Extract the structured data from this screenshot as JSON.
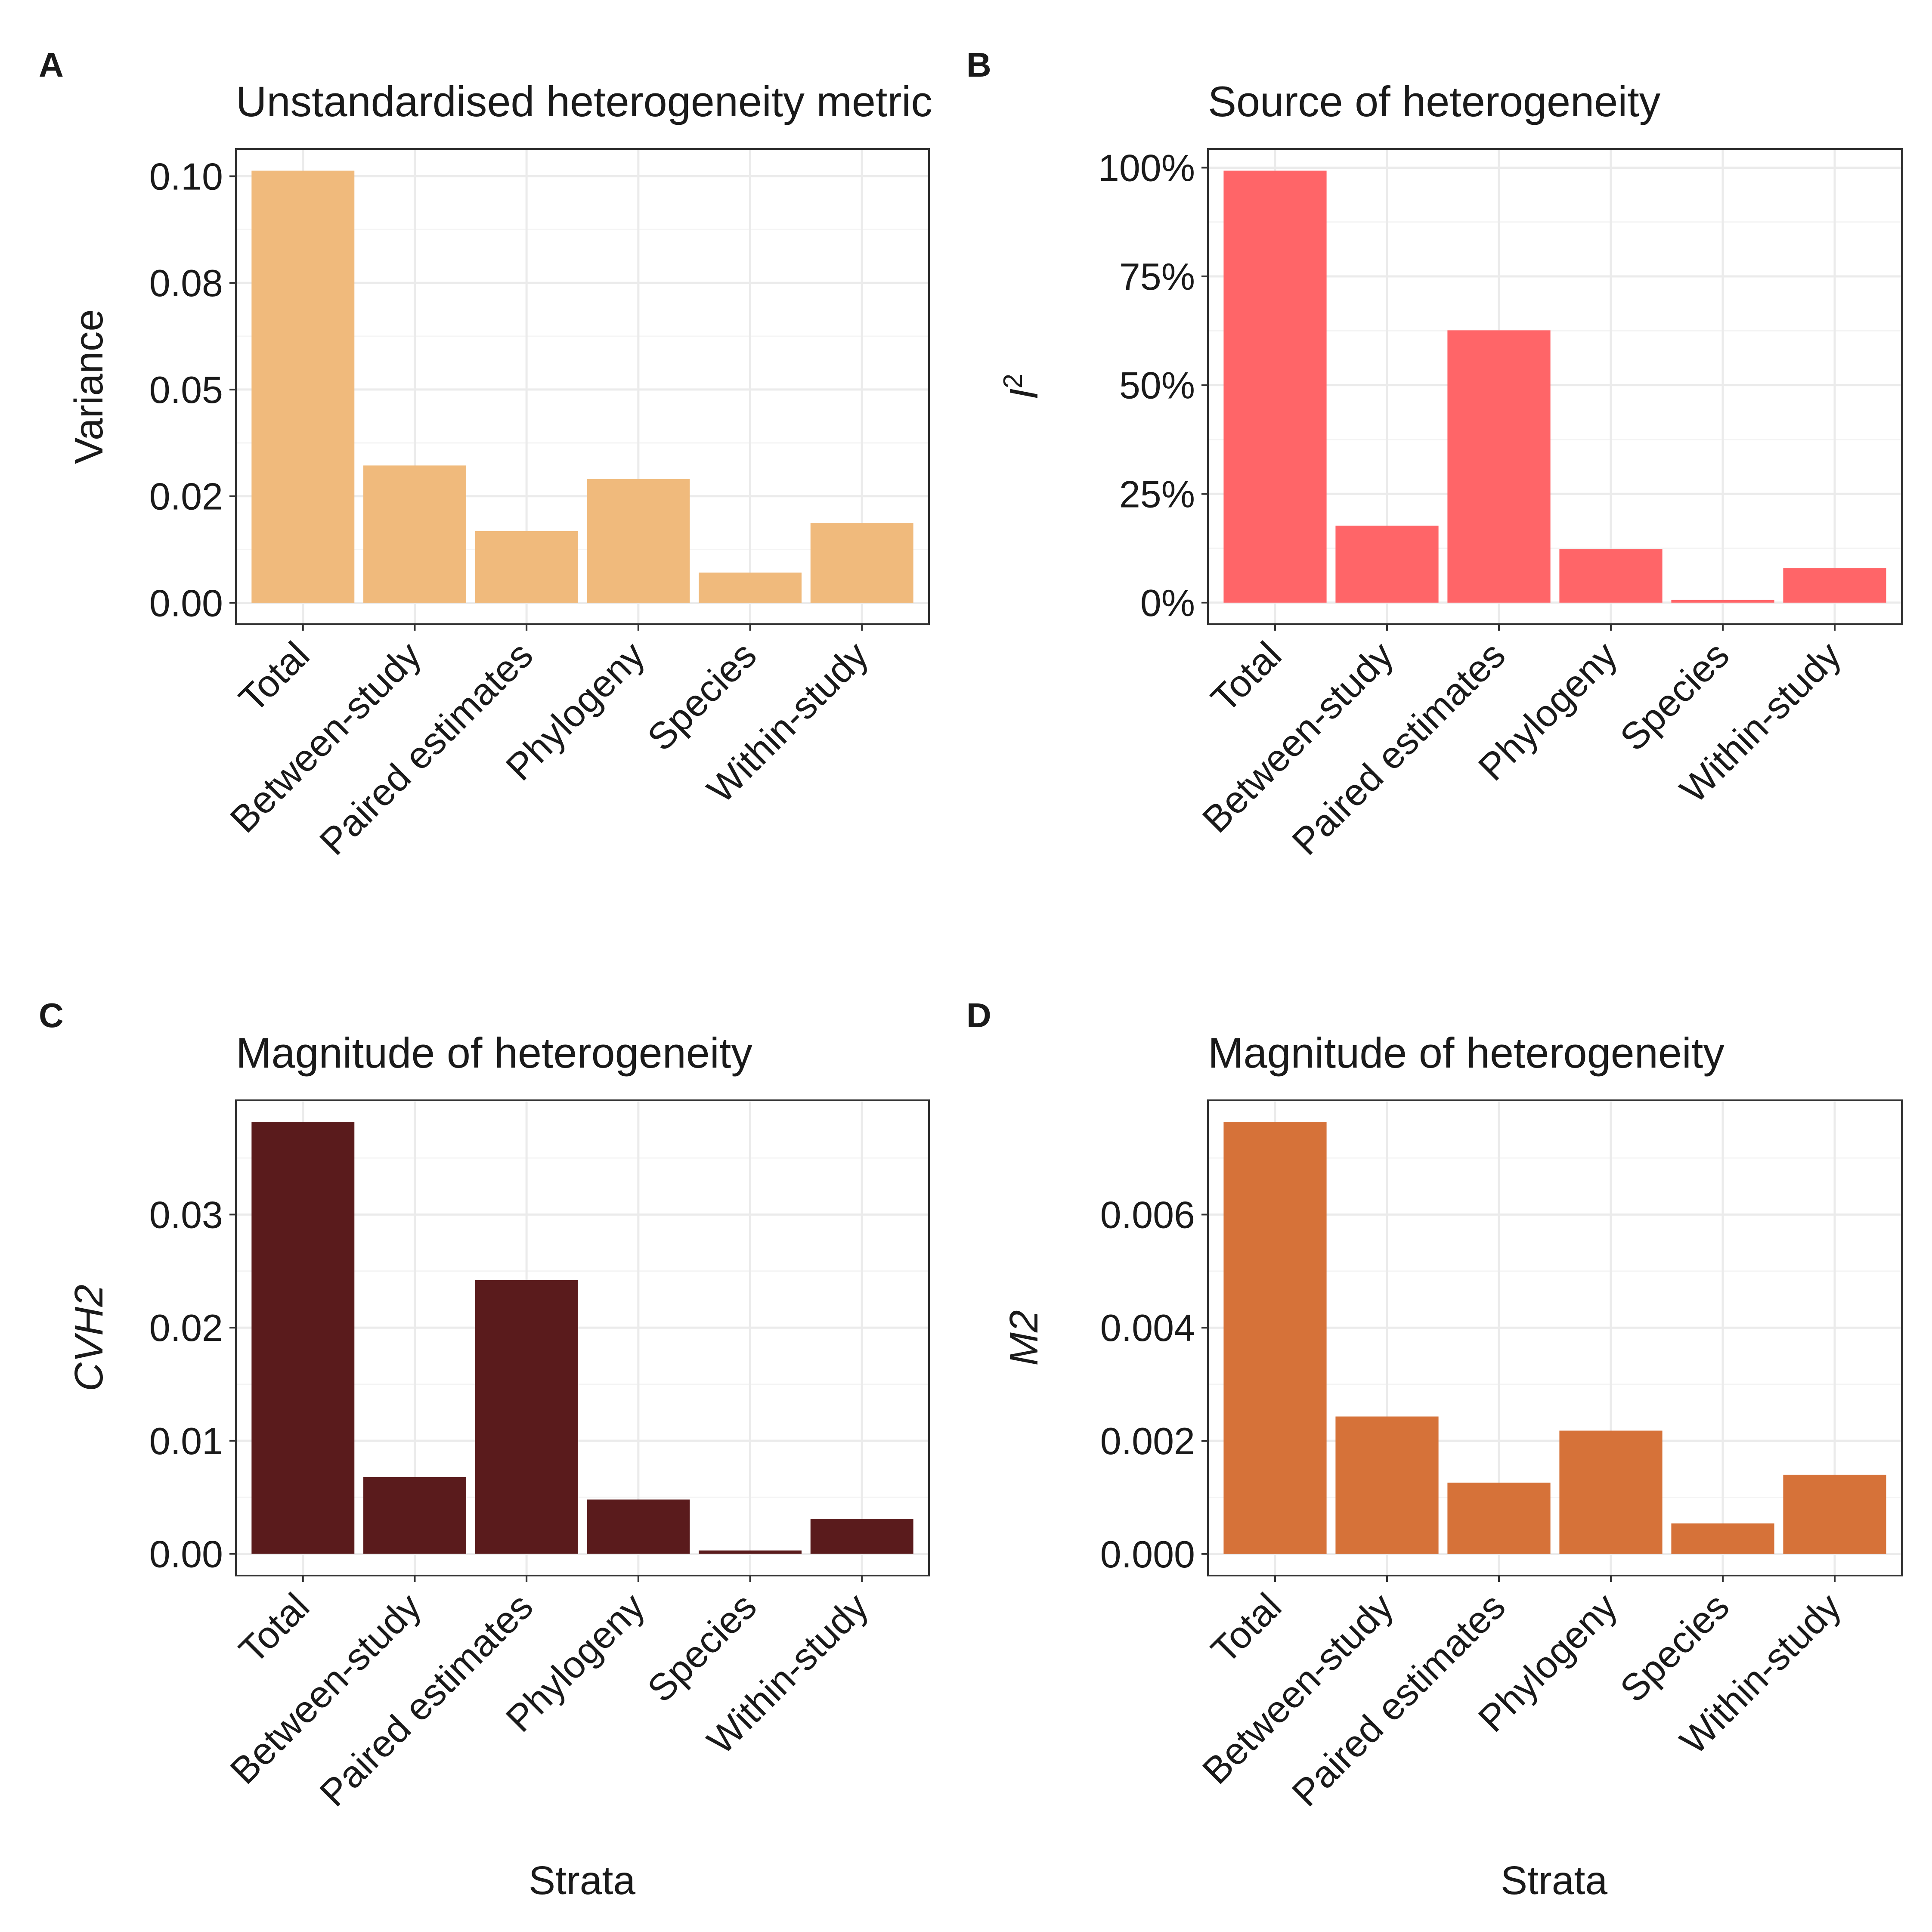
{
  "x_axis_title": "Strata",
  "chart_data": [
    {
      "type": "bar",
      "panel_label": "A",
      "title": "Unstandardised heterogeneity metric",
      "xlabel": "",
      "ylabel": "Variance",
      "ylabel_italic": false,
      "color": "#F0BA7C",
      "categories": [
        "Total",
        "Between-study",
        "Paired estimates",
        "Phylogeny",
        "Species",
        "Within-study"
      ],
      "values": [
        0.1013,
        0.0322,
        0.0168,
        0.029,
        0.0071,
        0.0187
      ],
      "ylim": [
        -0.005,
        0.1064
      ],
      "yticks": [
        0.0,
        0.025,
        0.05,
        0.075,
        0.1
      ],
      "ytick_labels": [
        "0.00",
        "0.02",
        "0.05",
        "0.08",
        "0.10"
      ],
      "grid": true
    },
    {
      "type": "bar",
      "panel_label": "B",
      "title": "Source of heterogeneity",
      "xlabel": "",
      "ylabel": "I",
      "ylabel_superscript": "2",
      "ylabel_italic": true,
      "color": "#FF6568",
      "categories": [
        "Total",
        "Between-study",
        "Paired estimates",
        "Phylogeny",
        "Species",
        "Within-study"
      ],
      "values": [
        99.3,
        17.7,
        62.6,
        12.3,
        0.6,
        7.9
      ],
      "ylim": [
        -4.96,
        104.3
      ],
      "yticks": [
        0,
        25,
        50,
        75,
        100
      ],
      "ytick_labels": [
        "0%",
        "25%",
        "50%",
        "75%",
        "100%"
      ],
      "grid": true
    },
    {
      "type": "bar",
      "panel_label": "C",
      "title": "Magnitude of heterogeneity",
      "xlabel": "Strata",
      "ylabel": "CVH2",
      "ylabel_italic": true,
      "color": "#5A1B1C",
      "categories": [
        "Total",
        "Between-study",
        "Paired estimates",
        "Phylogeny",
        "Species",
        "Within-study"
      ],
      "values": [
        0.0382,
        0.0068,
        0.0242,
        0.0048,
        0.0003,
        0.0031
      ],
      "ylim": [
        -0.00192,
        0.0401
      ],
      "yticks": [
        0.0,
        0.01,
        0.02,
        0.03
      ],
      "ytick_labels": [
        "0.00",
        "0.01",
        "0.02",
        "0.03"
      ],
      "grid": true
    },
    {
      "type": "bar",
      "panel_label": "D",
      "title": "Magnitude of heterogeneity",
      "xlabel": "Strata",
      "ylabel": "M2",
      "ylabel_italic": true,
      "color": "#D67239",
      "categories": [
        "Total",
        "Between-study",
        "Paired estimates",
        "Phylogeny",
        "Species",
        "Within-study"
      ],
      "values": [
        0.00764,
        0.00243,
        0.00126,
        0.00218,
        0.00054,
        0.0014
      ],
      "ylim": [
        -0.000382,
        0.00802
      ],
      "yticks": [
        0.0,
        0.002,
        0.004,
        0.006
      ],
      "ytick_labels": [
        "0.000",
        "0.002",
        "0.004",
        "0.006"
      ],
      "grid": true
    }
  ]
}
